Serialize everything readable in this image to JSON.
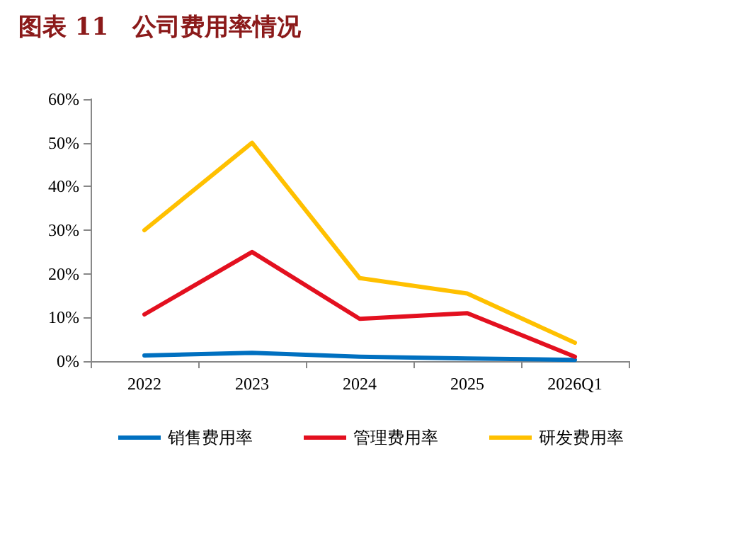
{
  "chart_data": {
    "type": "line",
    "title": "图表 11　公司费用率情况",
    "categories": [
      "2022",
      "2023",
      "2024",
      "2025",
      "2026Q1"
    ],
    "series": [
      {
        "name": "销售费用率",
        "color": "#0070c0",
        "values": [
          1.3,
          1.9,
          1,
          0.6,
          0.3
        ]
      },
      {
        "name": "管理费用率",
        "color": "#e3101f",
        "values": [
          10.7,
          25,
          9.7,
          11,
          1
        ]
      },
      {
        "name": "研发费用率",
        "color": "#ffc000",
        "values": [
          30,
          50,
          19,
          15.5,
          4.2
        ]
      }
    ],
    "ylim": [
      0,
      60
    ],
    "yticks": [
      {
        "value": 0,
        "label": "0%"
      },
      {
        "value": 10,
        "label": "10%"
      },
      {
        "value": 20,
        "label": "20%"
      },
      {
        "value": 30,
        "label": "30%"
      },
      {
        "value": 40,
        "label": "40%"
      },
      {
        "value": 50,
        "label": "50%"
      },
      {
        "value": 60,
        "label": "60%"
      }
    ],
    "grid": false,
    "legend": "bottom",
    "marker": "none",
    "line_style": "solid"
  }
}
